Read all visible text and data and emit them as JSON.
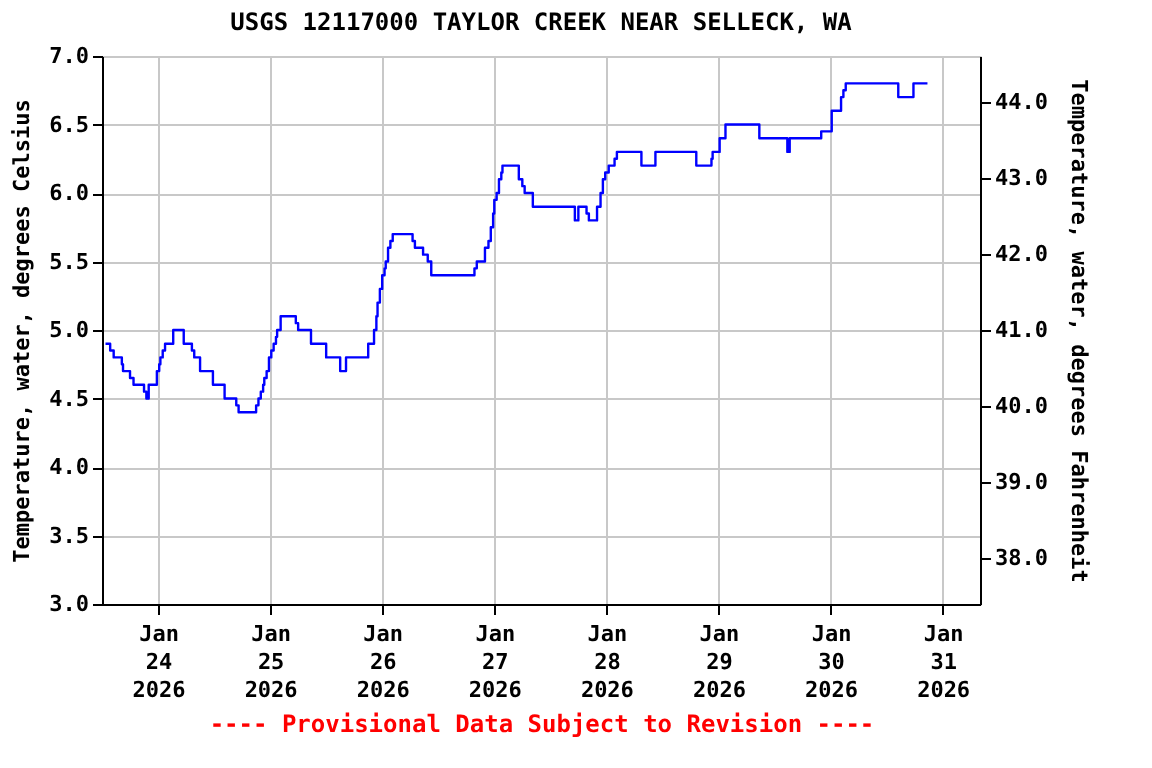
{
  "chart_data": {
    "type": "step",
    "title": "USGS 12117000 TAYLOR CREEK NEAR SELLECK, WA",
    "ylabel": "Temperature, water, degrees Celsius",
    "y2label": "Temperature, water, degrees Fahrenheit",
    "annotations": [
      "---- Provisional Data Subject to Revision ----"
    ],
    "grid": true,
    "marker": "none",
    "line_style": "solid",
    "xlim": [
      "2026-01-23T12:00",
      "2026-01-31T08:00"
    ],
    "xticks": [
      {
        "value": "2026-01-24",
        "label": "Jan 24 2026"
      },
      {
        "value": "2026-01-25",
        "label": "Jan 25 2026"
      },
      {
        "value": "2026-01-26",
        "label": "Jan 26 2026"
      },
      {
        "value": "2026-01-27",
        "label": "Jan 27 2026"
      },
      {
        "value": "2026-01-28",
        "label": "Jan 28 2026"
      },
      {
        "value": "2026-01-29",
        "label": "Jan 29 2026"
      },
      {
        "value": "2026-01-30",
        "label": "Jan 30 2026"
      },
      {
        "value": "2026-01-31",
        "label": "Jan 31 2026"
      }
    ],
    "ylim": [
      3.0,
      7.0
    ],
    "yticks": [
      {
        "value": 3.0,
        "label": "3.0"
      },
      {
        "value": 3.5,
        "label": "3.5"
      },
      {
        "value": 4.0,
        "label": "4.0"
      },
      {
        "value": 4.5,
        "label": "4.5"
      },
      {
        "value": 5.0,
        "label": "5.0"
      },
      {
        "value": 5.5,
        "label": "5.5"
      },
      {
        "value": 6.0,
        "label": "6.0"
      },
      {
        "value": 6.5,
        "label": "6.5"
      },
      {
        "value": 7.0,
        "label": "7.0"
      }
    ],
    "y2lim": [
      37.4,
      44.6
    ],
    "y2ticks": [
      {
        "value": 38.0,
        "label": "38.0"
      },
      {
        "value": 39.0,
        "label": "39.0"
      },
      {
        "value": 40.0,
        "label": "40.0"
      },
      {
        "value": 41.0,
        "label": "41.0"
      },
      {
        "value": 42.0,
        "label": "42.0"
      },
      {
        "value": 43.0,
        "label": "43.0"
      },
      {
        "value": 44.0,
        "label": "44.0"
      }
    ],
    "series": [
      {
        "color": "#0000ff",
        "x": [
          "2026-01-23T12:45",
          "2026-01-23T13:45",
          "2026-01-23T14:30",
          "2026-01-23T16:15",
          "2026-01-23T16:30",
          "2026-01-23T18:00",
          "2026-01-23T18:45",
          "2026-01-23T21:00",
          "2026-01-23T21:30",
          "2026-01-23T22:00",
          "2026-01-23T23:45",
          "2026-01-24T00:15",
          "2026-01-24T00:30",
          "2026-01-24T01:00",
          "2026-01-24T01:30",
          "2026-01-24T03:15",
          "2026-01-24T05:30",
          "2026-01-24T07:15",
          "2026-01-24T07:45",
          "2026-01-24T09:00",
          "2026-01-24T11:45",
          "2026-01-24T14:15",
          "2026-01-24T16:45",
          "2026-01-24T17:15",
          "2026-01-24T21:00",
          "2026-01-24T21:30",
          "2026-01-24T22:00",
          "2026-01-24T22:30",
          "2026-01-24T22:45",
          "2026-01-24T23:15",
          "2026-01-24T23:45",
          "2026-01-25T00:15",
          "2026-01-25T00:45",
          "2026-01-25T01:15",
          "2026-01-25T01:30",
          "2026-01-25T02:15",
          "2026-01-25T05:30",
          "2026-01-25T06:00",
          "2026-01-25T08:45",
          "2026-01-25T12:00",
          "2026-01-25T15:00",
          "2026-01-25T16:15",
          "2026-01-25T21:00",
          "2026-01-25T22:15",
          "2026-01-25T22:45",
          "2026-01-25T23:00",
          "2026-01-25T23:30",
          "2026-01-26T00:00",
          "2026-01-26T00:30",
          "2026-01-26T00:45",
          "2026-01-26T01:15",
          "2026-01-26T01:45",
          "2026-01-26T02:15",
          "2026-01-26T06:30",
          "2026-01-26T07:00",
          "2026-01-26T08:45",
          "2026-01-26T09:45",
          "2026-01-26T10:30",
          "2026-01-26T19:45",
          "2026-01-26T20:15",
          "2026-01-26T22:00",
          "2026-01-26T22:45",
          "2026-01-26T23:15",
          "2026-01-26T23:45",
          "2026-01-27T00:00",
          "2026-01-27T00:30",
          "2026-01-27T01:00",
          "2026-01-27T01:30",
          "2026-01-27T01:45",
          "2026-01-27T05:15",
          "2026-01-27T06:00",
          "2026-01-27T06:30",
          "2026-01-27T08:15",
          "2026-01-27T17:15",
          "2026-01-27T18:00",
          "2026-01-27T19:45",
          "2026-01-27T20:15",
          "2026-01-27T22:00",
          "2026-01-27T22:45",
          "2026-01-27T23:15",
          "2026-01-27T23:45",
          "2026-01-28T00:30",
          "2026-01-28T01:45",
          "2026-01-28T02:15",
          "2026-01-28T07:30",
          "2026-01-28T10:30",
          "2026-01-28T19:15",
          "2026-01-28T22:30",
          "2026-01-28T22:45",
          "2026-01-29T00:15",
          "2026-01-29T01:30",
          "2026-01-29T08:45",
          "2026-01-29T14:45",
          "2026-01-29T15:15",
          "2026-01-29T22:00",
          "2026-01-30T00:15",
          "2026-01-30T02:15",
          "2026-01-30T02:45",
          "2026-01-30T03:15",
          "2026-01-30T14:30",
          "2026-01-30T17:45",
          "2026-01-30T20:45"
        ],
        "values": [
          4.9,
          4.85,
          4.8,
          4.75,
          4.7,
          4.65,
          4.6,
          4.55,
          4.5,
          4.6,
          4.7,
          4.75,
          4.8,
          4.85,
          4.9,
          5.0,
          4.9,
          4.85,
          4.8,
          4.7,
          4.6,
          4.5,
          4.45,
          4.4,
          4.45,
          4.5,
          4.55,
          4.6,
          4.65,
          4.7,
          4.8,
          4.85,
          4.9,
          4.95,
          5.0,
          5.1,
          5.05,
          5.0,
          4.9,
          4.8,
          4.7,
          4.8,
          4.9,
          5.0,
          5.1,
          5.2,
          5.3,
          5.4,
          5.45,
          5.5,
          5.6,
          5.65,
          5.7,
          5.65,
          5.6,
          5.55,
          5.5,
          5.4,
          5.45,
          5.5,
          5.6,
          5.65,
          5.75,
          5.85,
          5.95,
          6.0,
          6.1,
          6.15,
          6.2,
          6.1,
          6.05,
          6.0,
          5.9,
          5.8,
          5.9,
          5.85,
          5.8,
          5.9,
          6.0,
          6.1,
          6.15,
          6.2,
          6.25,
          6.3,
          6.2,
          6.3,
          6.2,
          6.25,
          6.3,
          6.4,
          6.5,
          6.4,
          6.3,
          6.4,
          6.45,
          6.6,
          6.7,
          6.75,
          6.8,
          6.7,
          6.8,
          6.8
        ]
      }
    ]
  }
}
